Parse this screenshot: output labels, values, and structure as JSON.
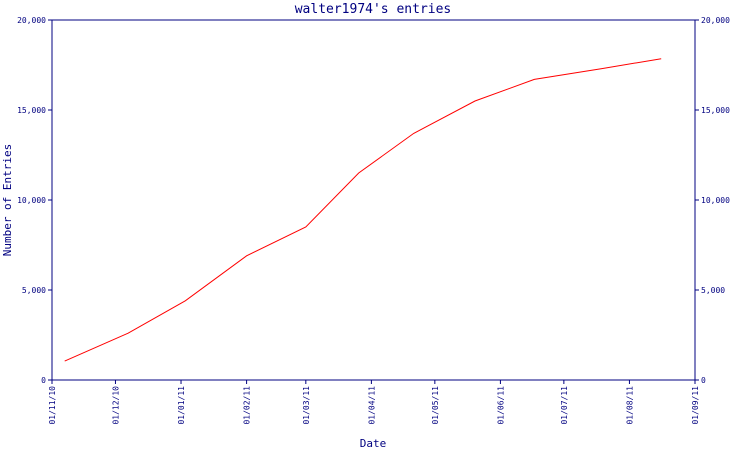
{
  "chart_data": {
    "type": "line",
    "title": "walter1974's entries",
    "xlabel": "Date",
    "ylabel": "Number of Entries",
    "x_ticks": [
      "01/11/10",
      "01/12/10",
      "01/01/11",
      "01/02/11",
      "01/03/11",
      "01/04/11",
      "01/05/11",
      "01/06/11",
      "01/07/11",
      "01/08/11",
      "01/09/11"
    ],
    "y_ticks": [
      "0",
      "5,000",
      "10,000",
      "15,000",
      "20,000"
    ],
    "ylim": [
      0,
      20000
    ],
    "xlim": [
      "2010-11-01",
      "2011-09-01"
    ],
    "grid": false,
    "legend": "none",
    "series": [
      {
        "color": "#ff0000",
        "points": [
          {
            "x": "2010-11-07",
            "y": 1050
          },
          {
            "x": "2010-12-07",
            "y": 2600
          },
          {
            "x": "2011-01-03",
            "y": 4400
          },
          {
            "x": "2011-02-01",
            "y": 6900
          },
          {
            "x": "2011-03-01",
            "y": 8500
          },
          {
            "x": "2011-03-26",
            "y": 11500
          },
          {
            "x": "2011-04-21",
            "y": 13700
          },
          {
            "x": "2011-05-20",
            "y": 15500
          },
          {
            "x": "2011-06-17",
            "y": 16700
          },
          {
            "x": "2011-07-19",
            "y": 17300
          },
          {
            "x": "2011-08-16",
            "y": 17850
          }
        ]
      }
    ]
  },
  "colors": {
    "axis": "#000080",
    "text": "#000080",
    "line": "#ff0000"
  }
}
